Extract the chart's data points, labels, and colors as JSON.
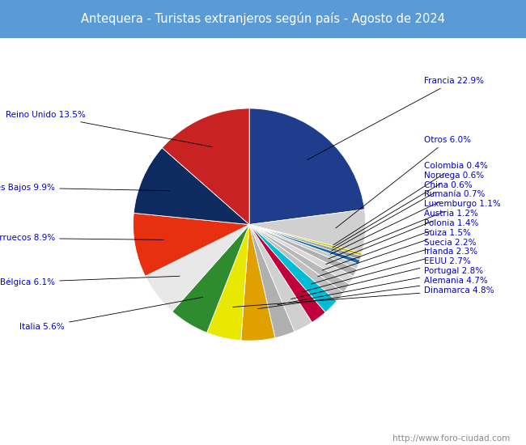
{
  "title": "Antequera - Turistas extranjeros según país - Agosto de 2024",
  "title_bg_color": "#5b9bd5",
  "title_text_color": "white",
  "footer_text": "http://www.foro-ciudad.com",
  "slices": [
    {
      "label": "Francia",
      "value": 22.9,
      "color": "#1f3d8c"
    },
    {
      "label": "Otros",
      "value": 6.0,
      "color": "#d0d0d0"
    },
    {
      "label": "Colombia",
      "value": 0.4,
      "color": "#c8c800"
    },
    {
      "label": "Noruega",
      "value": 0.6,
      "color": "#a0a0a0"
    },
    {
      "label": "China",
      "value": 0.6,
      "color": "#1a6ab5"
    },
    {
      "label": "Rumanía",
      "value": 0.7,
      "color": "#c8c8c8"
    },
    {
      "label": "Luxemburgo",
      "value": 1.1,
      "color": "#b0b0b0"
    },
    {
      "label": "Austria",
      "value": 1.2,
      "color": "#d8d8d8"
    },
    {
      "label": "Polonia",
      "value": 1.4,
      "color": "#b8b8b8"
    },
    {
      "label": "Suiza",
      "value": 1.5,
      "color": "#c0c0c0"
    },
    {
      "label": "Suecia",
      "value": 2.2,
      "color": "#00bcd4"
    },
    {
      "label": "Irlanda",
      "value": 2.3,
      "color": "#c0003a"
    },
    {
      "label": "EEUU",
      "value": 2.7,
      "color": "#d0d0d0"
    },
    {
      "label": "Portugal",
      "value": 2.8,
      "color": "#b0b0b0"
    },
    {
      "label": "Alemania",
      "value": 4.7,
      "color": "#e0a000"
    },
    {
      "label": "Dinamarca",
      "value": 4.8,
      "color": "#e8e800"
    },
    {
      "label": "Italia",
      "value": 5.6,
      "color": "#2e8b2e"
    },
    {
      "label": "Bélgica",
      "value": 6.1,
      "color": "#e8e8e8"
    },
    {
      "label": "Marruecos",
      "value": 8.9,
      "color": "#e83010"
    },
    {
      "label": "Países Bajos",
      "value": 9.9,
      "color": "#0d2b5e"
    },
    {
      "label": "Reino Unido",
      "value": 13.5,
      "color": "#c82222"
    }
  ],
  "label_color": "#0000cc",
  "label_fontsize": 7.5,
  "figsize": [
    6.5,
    5.5
  ],
  "dpi": 100,
  "bg_color": "#f0f8ff"
}
